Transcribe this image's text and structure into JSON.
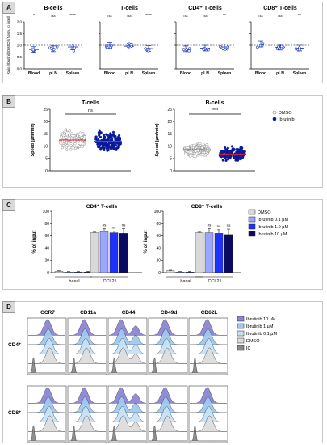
{
  "panels": {
    "A": {
      "label": "A",
      "ylabel": "Ratio (Ibrutinib/DMSO) (Norm. to input)",
      "plots": [
        {
          "title": "B-cells",
          "sig": [
            "*",
            "ns",
            "****"
          ]
        },
        {
          "title": "T-cells",
          "sig": [
            "ns",
            "ns",
            "****"
          ]
        },
        {
          "title": "CD4⁺ T-cells",
          "sig": [
            "ns",
            "ns",
            "**"
          ]
        },
        {
          "title": "CD8⁺ T-cells",
          "sig": [
            "ns",
            "ns",
            "**"
          ]
        }
      ],
      "categories": [
        "Blood",
        "pLN",
        "Spleen"
      ],
      "yticks": [
        "0.0",
        "0.5",
        "1.0",
        "1.5",
        "2.0"
      ]
    },
    "B": {
      "label": "B",
      "plots": [
        {
          "title": "T-cells",
          "sig": "ns"
        },
        {
          "title": "B-cells",
          "sig": "****"
        }
      ],
      "ylabel": "Speed (µm/min)",
      "yticks": [
        "0",
        "5",
        "10",
        "15",
        "20",
        "25"
      ],
      "legend": [
        {
          "label": "DMSO",
          "color": "#ffffff"
        },
        {
          "label": "Ibrutinib",
          "color": "#0a1a9a"
        }
      ]
    },
    "C": {
      "label": "C",
      "plots": [
        {
          "title": "CD4⁺ T-cells"
        },
        {
          "title": "CD8⁺ T-cells"
        }
      ],
      "ylabel": "% of input",
      "yticks": [
        "0",
        "20",
        "40",
        "60",
        "80",
        "100"
      ],
      "groups": [
        "basal",
        "CCL21"
      ],
      "sig": [
        "ns",
        "ns",
        "ns"
      ],
      "legend": [
        {
          "label": "DMSO",
          "color": "#d9d9d9"
        },
        {
          "label": "Ibrutinib 0.1 µM",
          "color": "#9aa6ff"
        },
        {
          "label": "Ibrutinib 1.0 µM",
          "color": "#2030ff"
        },
        {
          "label": "Ibrutinib  10 µM",
          "color": "#0a0a60"
        }
      ]
    },
    "D": {
      "label": "D",
      "markers": [
        "CCR7",
        "CD11a",
        "CD44",
        "CD49d",
        "CD62L"
      ],
      "rows": [
        "CD4⁺",
        "CD8⁺"
      ],
      "legend": [
        {
          "label": "Ibrutinib 10 µM",
          "color": "#8c86d4"
        },
        {
          "label": "Ibrutinib    1 µM",
          "color": "#9fc8ef"
        },
        {
          "label": "Ibrutinib 0.1 µM",
          "color": "#c6e2f6"
        },
        {
          "label": "DMSO",
          "color": "#dcdcdc"
        },
        {
          "label": "IC",
          "color": "#888888"
        }
      ]
    }
  },
  "chart_data": [
    {
      "type": "bar",
      "title": "B-cells",
      "categories": [
        "Blood",
        "pLN",
        "Spleen"
      ],
      "values": [
        0.82,
        0.85,
        0.93
      ],
      "ylim": [
        0,
        2.0
      ],
      "ylabel": "Ratio (Ibrutinib/DMSO) (Norm. to input)"
    },
    {
      "type": "bar",
      "title": "T-cells",
      "categories": [
        "Blood",
        "pLN",
        "Spleen"
      ],
      "values": [
        1.0,
        0.96,
        0.86
      ],
      "ylim": [
        0,
        2.0
      ]
    },
    {
      "type": "bar",
      "title": "CD4⁺ T-cells",
      "categories": [
        "Blood",
        "pLN",
        "Spleen"
      ],
      "values": [
        0.85,
        0.88,
        0.93
      ],
      "ylim": [
        0,
        2.0
      ]
    },
    {
      "type": "bar",
      "title": "CD8⁺ T-cells",
      "categories": [
        "Blood",
        "pLN",
        "Spleen"
      ],
      "values": [
        1.05,
        0.92,
        0.88
      ],
      "ylim": [
        0,
        2.0
      ]
    },
    {
      "type": "scatter",
      "title": "T-cells",
      "series": [
        {
          "name": "DMSO",
          "median": 12.5
        },
        {
          "name": "Ibrutinib",
          "median": 12.0
        }
      ],
      "ylabel": "Speed (µm/min)",
      "ylim": [
        0,
        25
      ]
    },
    {
      "type": "scatter",
      "title": "B-cells",
      "series": [
        {
          "name": "DMSO",
          "median": 8.5
        },
        {
          "name": "Ibrutinib",
          "median": 6.8
        }
      ],
      "ylabel": "Speed (µm/min)",
      "ylim": [
        0,
        25
      ]
    },
    {
      "type": "bar",
      "title": "CD4⁺ T-cells",
      "categories": [
        "basal",
        "CCL21"
      ],
      "series": [
        {
          "name": "DMSO",
          "values": [
            2,
            65
          ]
        },
        {
          "name": "Ibrutinib 0.1 µM",
          "values": [
            1,
            67
          ]
        },
        {
          "name": "Ibrutinib 1.0 µM",
          "values": [
            1,
            65
          ]
        },
        {
          "name": "Ibrutinib  10 µM",
          "values": [
            1,
            64
          ]
        }
      ],
      "errors": [
        [
          1,
          1
        ],
        [
          1,
          5
        ],
        [
          1,
          3
        ],
        [
          1,
          8
        ]
      ],
      "ylim": [
        0,
        100
      ],
      "ylabel": "% of input"
    },
    {
      "type": "bar",
      "title": "CD8⁺ T-cells",
      "categories": [
        "basal",
        "CCL21"
      ],
      "series": [
        {
          "name": "DMSO",
          "values": [
            3,
            65
          ]
        },
        {
          "name": "Ibrutinib 0.1 µM",
          "values": [
            1,
            65
          ]
        },
        {
          "name": "Ibrutinib 1.0 µM",
          "values": [
            1,
            64
          ]
        },
        {
          "name": "Ibrutinib  10 µM",
          "values": [
            1,
            62
          ]
        }
      ],
      "errors": [
        [
          1,
          1
        ],
        [
          1,
          7
        ],
        [
          1,
          6
        ],
        [
          1,
          9
        ]
      ],
      "ylim": [
        0,
        100
      ],
      "ylabel": "% of input"
    }
  ]
}
